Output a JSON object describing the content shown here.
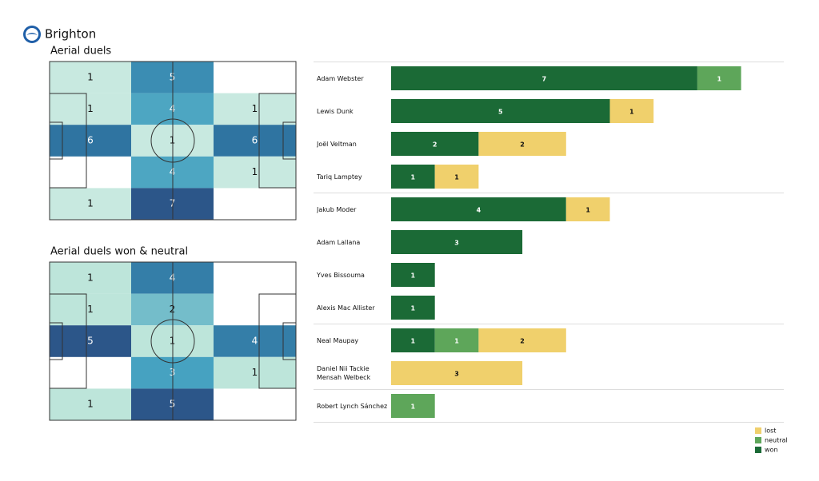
{
  "team": "Brighton",
  "heatmaps": [
    {
      "title": "Aerial duels",
      "rows": [
        [
          1,
          5,
          null
        ],
        [
          1,
          4,
          1
        ],
        [
          6,
          1,
          6
        ],
        [
          null,
          4,
          1
        ],
        [
          1,
          7,
          null
        ]
      ]
    },
    {
      "title": "Aerial duels won & neutral",
      "rows": [
        [
          1,
          4,
          null
        ],
        [
          1,
          2,
          null
        ],
        [
          5,
          1,
          4
        ],
        [
          null,
          3,
          1
        ],
        [
          1,
          5,
          null
        ]
      ]
    }
  ],
  "chart_data": {
    "type": "bar",
    "orientation": "horizontal",
    "stacked": true,
    "legend": "bottom-right",
    "categories": [
      "Adam Webster",
      "Lewis Dunk",
      "Joël Veltman",
      "Tariq Lamptey",
      "Jakub Moder",
      "Adam Lallana",
      "Yves Bissouma",
      "Alexis Mac Allister",
      "Neal Maupay",
      "Daniel Nii Tackie Mensah Welbeck",
      "Robert Lynch Sánchez"
    ],
    "series": [
      {
        "name": "won",
        "color": "#1b6a36",
        "values": [
          7,
          5,
          2,
          1,
          4,
          3,
          1,
          1,
          1,
          null,
          null
        ]
      },
      {
        "name": "neutral",
        "color": "#5ea65a",
        "values": [
          1,
          null,
          null,
          null,
          null,
          null,
          null,
          null,
          1,
          null,
          1
        ]
      },
      {
        "name": "lost",
        "color": "#f0d06c",
        "values": [
          null,
          1,
          2,
          1,
          1,
          null,
          null,
          null,
          2,
          3,
          null
        ]
      }
    ]
  }
}
